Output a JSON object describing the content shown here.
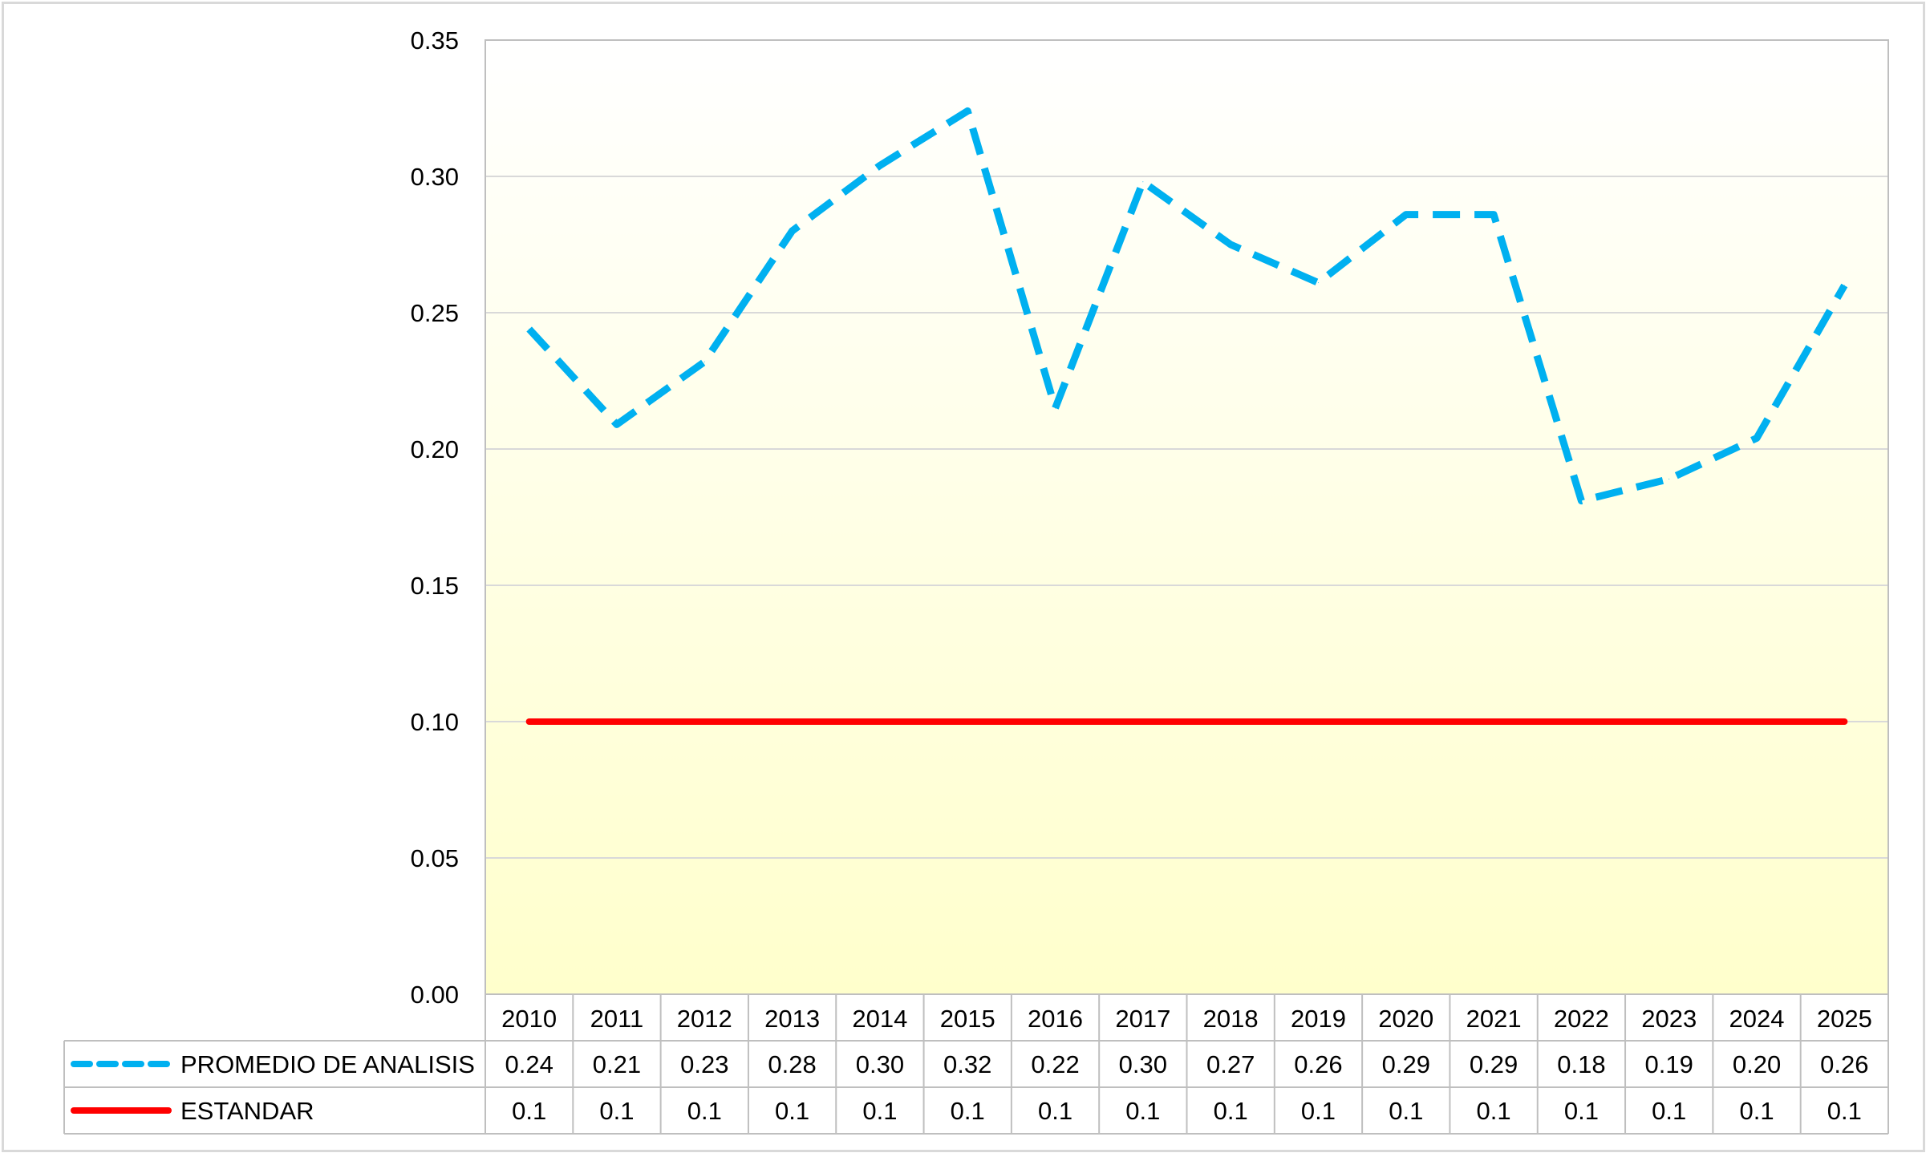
{
  "chart_data": {
    "type": "line",
    "categories": [
      "2010",
      "2011",
      "2012",
      "2013",
      "2014",
      "2015",
      "2016",
      "2017",
      "2018",
      "2019",
      "2020",
      "2021",
      "2022",
      "2023",
      "2024",
      "2025"
    ],
    "series": [
      {
        "name": "PROMEDIO DE ANALISIS",
        "values": [
          0.244,
          0.209,
          0.232,
          0.28,
          0.304,
          0.324,
          0.215,
          0.298,
          0.275,
          0.261,
          0.286,
          0.286,
          0.181,
          0.189,
          0.204,
          0.26
        ],
        "table_values": [
          "0.24",
          "0.21",
          "0.23",
          "0.28",
          "0.30",
          "0.32",
          "0.22",
          "0.30",
          "0.27",
          "0.26",
          "0.29",
          "0.29",
          "0.18",
          "0.19",
          "0.20",
          "0.26"
        ],
        "color": "#00b0f0",
        "style": "dashed"
      },
      {
        "name": "ESTANDAR",
        "values": [
          0.1,
          0.1,
          0.1,
          0.1,
          0.1,
          0.1,
          0.1,
          0.1,
          0.1,
          0.1,
          0.1,
          0.1,
          0.1,
          0.1,
          0.1,
          0.1
        ],
        "table_values": [
          "0.1",
          "0.1",
          "0.1",
          "0.1",
          "0.1",
          "0.1",
          "0.1",
          "0.1",
          "0.1",
          "0.1",
          "0.1",
          "0.1",
          "0.1",
          "0.1",
          "0.1",
          "0.1"
        ],
        "color": "#ff0000",
        "style": "solid"
      }
    ],
    "ylim": [
      0,
      0.35
    ],
    "yticks": [
      "0.00",
      "0.05",
      "0.10",
      "0.15",
      "0.20",
      "0.25",
      "0.30",
      "0.35"
    ],
    "grid": true,
    "legend": "data-table",
    "plot_background": {
      "top": "#ffffff",
      "bottom": "#ffffcc"
    }
  }
}
